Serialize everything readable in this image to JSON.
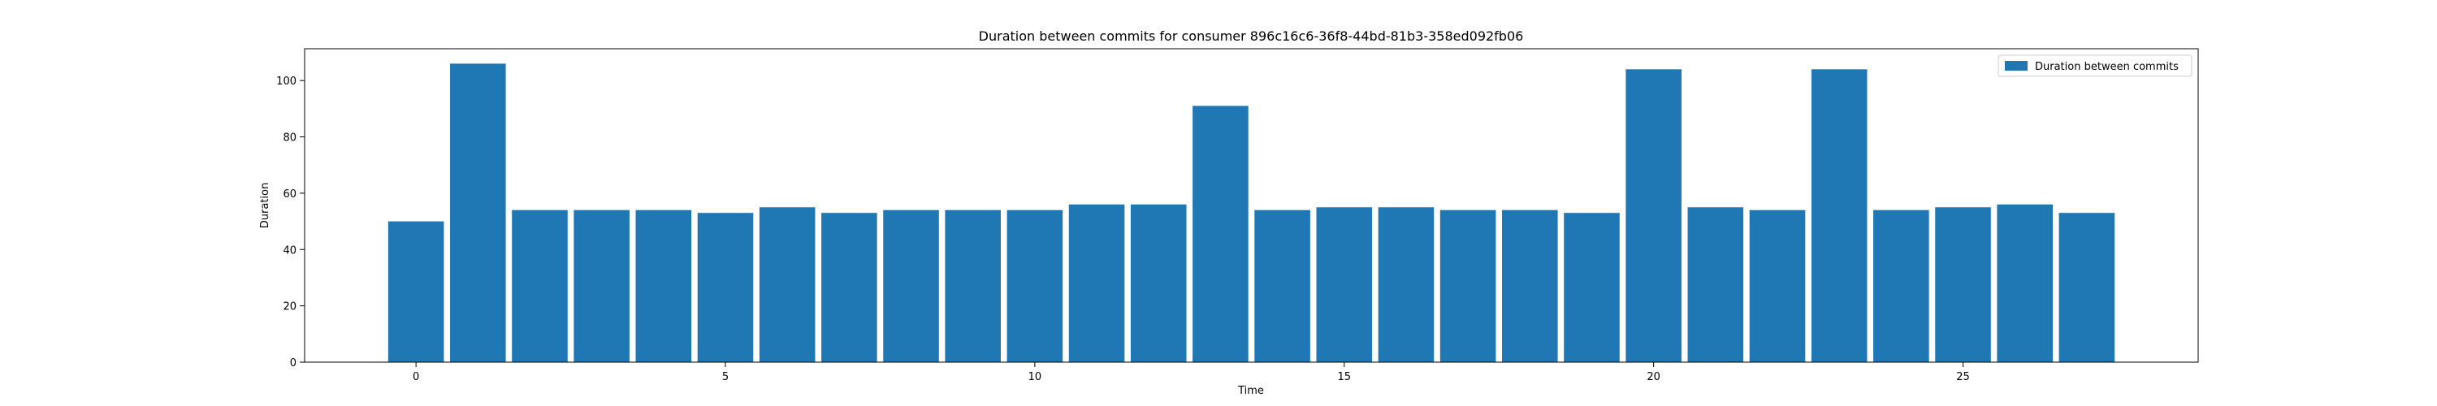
{
  "chart_data": {
    "type": "bar",
    "title": "Duration between commits for consumer 896c16c6-36f8-44bd-81b3-358ed092fb06",
    "xlabel": "Time",
    "ylabel": "Duration",
    "x": [
      0,
      1,
      2,
      3,
      4,
      5,
      6,
      7,
      8,
      9,
      10,
      11,
      12,
      13,
      14,
      15,
      16,
      17,
      18,
      19,
      20,
      21,
      22,
      23,
      24,
      25,
      26,
      27
    ],
    "series": [
      {
        "name": "Duration between commits",
        "values": [
          50,
          106,
          54,
          54,
          54,
          53,
          55,
          53,
          54,
          54,
          54,
          56,
          56,
          91,
          54,
          55,
          55,
          54,
          54,
          53,
          104,
          55,
          54,
          104,
          54,
          55,
          56,
          53
        ],
        "color": "#1f77b4"
      }
    ],
    "xlim": [
      -1.8,
      28.8
    ],
    "ylim": [
      0,
      111.3
    ],
    "xticks": [
      0,
      5,
      10,
      15,
      20,
      25
    ],
    "yticks": [
      0,
      20,
      40,
      60,
      80,
      100
    ],
    "grid": false,
    "legend": "top-right"
  }
}
